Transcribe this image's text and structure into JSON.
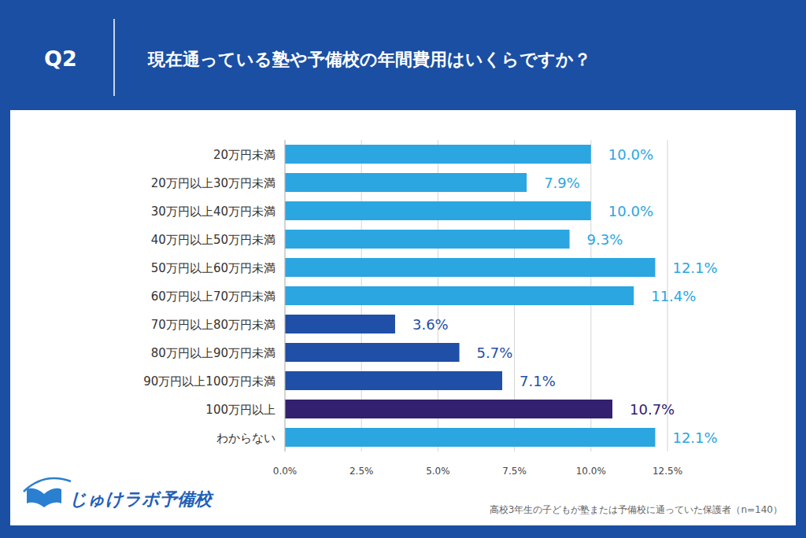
{
  "header": {
    "number": "Q2"
  },
  "footer": {
    "brand": "じゅけラボ予備校",
    "note": "高校3年生の子どもが塾または予備校に通っていた保護者（n=140）"
  },
  "chart_data": {
    "type": "bar",
    "title": "現在通っている塾や予備校の年間費用はいくらですか？",
    "orientation": "horizontal",
    "categories": [
      "20万円未満",
      "20万円以上30万円未満",
      "30万円以上40万円未満",
      "40万円以上50万円未満",
      "50万円以上60万円未満",
      "60万円以上70万円未満",
      "70万円以上80万円未満",
      "80万円以上90万円未満",
      "90万円以上100万円未満",
      "100万円以上",
      "わからない"
    ],
    "values": [
      10.0,
      7.9,
      10.0,
      9.3,
      12.1,
      11.4,
      3.6,
      5.7,
      7.1,
      10.7,
      12.1
    ],
    "value_labels": [
      "10.0%",
      "7.9%",
      "10.0%",
      "9.3%",
      "12.1%",
      "11.4%",
      "3.6%",
      "5.7%",
      "7.1%",
      "10.7%",
      "12.1%"
    ],
    "colors": [
      "#2ba6e1",
      "#2ba6e1",
      "#2ba6e1",
      "#2ba6e1",
      "#2ba6e1",
      "#2ba6e1",
      "#1f4fa6",
      "#1f4fa6",
      "#1f4fa6",
      "#33206e",
      "#2ba6e1"
    ],
    "xlim": [
      0,
      12.5
    ],
    "xticks": [
      {
        "value": 0,
        "label": "0.0%"
      },
      {
        "value": 2.5,
        "label": "2.5%"
      },
      {
        "value": 5,
        "label": "5.0%"
      },
      {
        "value": 7.5,
        "label": "7.5%"
      },
      {
        "value": 10,
        "label": "10.0%"
      },
      {
        "value": 12.5,
        "label": "12.5%"
      }
    ],
    "grid": true,
    "data_labels": true
  }
}
